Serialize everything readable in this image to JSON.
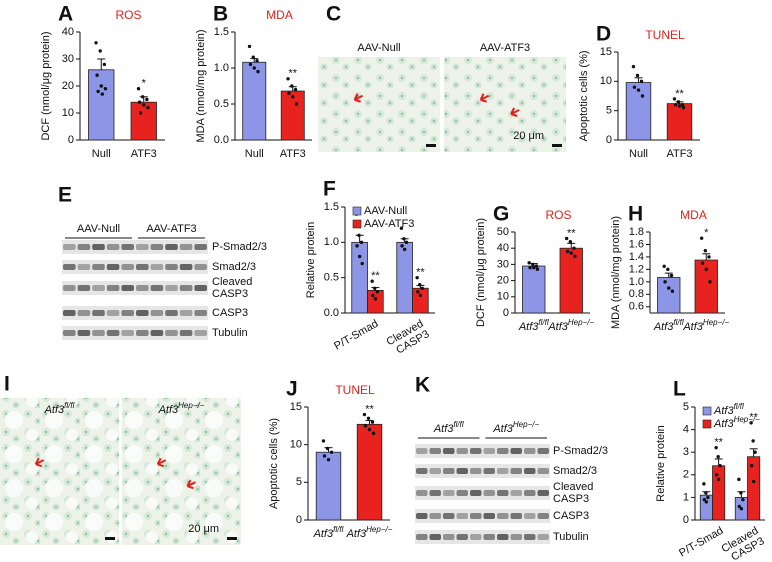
{
  "chart_data": [
    {
      "type": "bar",
      "panel": "A",
      "title": "ROS",
      "ylabel": "DCF (nmol/μg protein)",
      "categories": [
        "Null",
        "ATF3"
      ],
      "values": [
        26,
        14
      ],
      "errors": [
        4,
        2
      ],
      "points": [
        [
          36,
          33,
          28,
          24,
          20,
          19,
          18,
          17
        ],
        [
          19,
          16,
          15,
          14,
          13,
          12,
          10
        ]
      ],
      "sig": [
        null,
        "*"
      ],
      "colors": [
        "#8d95e6",
        "#e8231f"
      ],
      "ylim": [
        0,
        40
      ],
      "yticks": [
        0,
        10,
        20,
        30,
        40
      ]
    },
    {
      "type": "bar",
      "panel": "B",
      "title": "MDA",
      "ylabel": "MDA (nmol/mg protein)",
      "categories": [
        "Null",
        "ATF3"
      ],
      "values": [
        1.08,
        0.68
      ],
      "errors": [
        0.05,
        0.06
      ],
      "points": [
        [
          1.3,
          1.15,
          1.1,
          1.05,
          1.0,
          0.95
        ],
        [
          0.85,
          0.75,
          0.7,
          0.65,
          0.6,
          0.5
        ]
      ],
      "sig": [
        null,
        "**"
      ],
      "colors": [
        "#8d95e6",
        "#e8231f"
      ],
      "ylim": [
        0,
        1.5
      ],
      "yticks": [
        {
          "value": 0,
          "label": "0.0"
        },
        0.5,
        {
          "value": 1,
          "label": "1.0"
        },
        1.5
      ]
    },
    {
      "type": "bar",
      "panel": "D",
      "title": "TUNEL",
      "ylabel": "Apoptotic cells (%)",
      "categories": [
        "Null",
        "ATF3"
      ],
      "values": [
        9.8,
        6.2
      ],
      "errors": [
        0.8,
        0.3
      ],
      "points": [
        [
          12.5,
          11,
          10,
          9,
          8.5,
          7.5
        ],
        [
          7,
          6.5,
          6,
          6,
          5.8,
          5.5
        ]
      ],
      "sig": [
        null,
        "**"
      ],
      "colors": [
        "#8d95e6",
        "#e8231f"
      ],
      "ylim": [
        0,
        15
      ],
      "yticks": [
        0,
        5,
        10,
        15
      ]
    },
    {
      "type": "grouped_bar",
      "panel": "F",
      "ylabel": "Relative protein",
      "categories": [
        "P/T-Smad",
        "Cleaved CASP3"
      ],
      "ylim": [
        0,
        1.5
      ],
      "yticks": [
        {
          "value": 0,
          "label": "0.0"
        },
        0.5,
        {
          "value": 1,
          "label": "1.0"
        },
        1.5
      ],
      "series": [
        {
          "name": "AAV-Null",
          "color": "#8d95e6",
          "values": [
            1.0,
            1.0
          ],
          "errors": [
            0.1,
            0.05
          ],
          "points": [
            [
              1.4,
              1.1,
              1.0,
              0.95,
              0.8,
              0.7
            ],
            [
              1.2,
              1.05,
              1.0,
              0.95,
              0.9
            ]
          ],
          "sig": [
            null,
            null
          ]
        },
        {
          "name": "AAV-ATF3",
          "color": "#e8231f",
          "values": [
            0.32,
            0.35
          ],
          "errors": [
            0.04,
            0.04
          ],
          "points": [
            [
              0.45,
              0.35,
              0.3,
              0.25,
              0.2
            ],
            [
              0.5,
              0.4,
              0.35,
              0.3,
              0.25
            ]
          ],
          "sig": [
            "**",
            "**"
          ]
        }
      ]
    },
    {
      "type": "bar",
      "panel": "G",
      "title": "ROS",
      "ylabel": "DCF (nmol/μg protein)",
      "categories": [
        {
          "text": "Atf3",
          "sup": "fl/fl"
        },
        {
          "text": "Atf3",
          "sup": "Hep−/−"
        }
      ],
      "values": [
        29,
        40
      ],
      "errors": [
        1.5,
        3
      ],
      "points": [
        [
          31,
          30,
          29,
          28,
          28,
          27
        ],
        [
          46,
          44,
          40,
          38,
          37,
          35
        ]
      ],
      "sig": [
        null,
        "**"
      ],
      "colors": [
        "#8d95e6",
        "#e8231f"
      ],
      "ylim": [
        0,
        50
      ],
      "yticks": [
        0,
        10,
        20,
        30,
        40,
        50
      ]
    },
    {
      "type": "bar",
      "panel": "H",
      "title": "MDA",
      "ylabel": "MDA (nmol/mg protein)",
      "categories": [
        {
          "text": "Atf3",
          "sup": "fl/fl"
        },
        {
          "text": "Atf3",
          "sup": "Hep−/−"
        }
      ],
      "values": [
        1.07,
        1.35
      ],
      "errors": [
        0.07,
        0.1
      ],
      "points": [
        [
          1.25,
          1.2,
          1.1,
          1.0,
          0.9,
          0.85
        ],
        [
          1.7,
          1.5,
          1.4,
          1.3,
          1.2,
          1.0
        ]
      ],
      "sig": [
        null,
        "*"
      ],
      "colors": [
        "#8d95e6",
        "#e8231f"
      ],
      "ylim": [
        0.5,
        1.8
      ],
      "yticks": [
        0.6,
        0.8,
        {
          "value": 1,
          "label": "1.0"
        },
        1.2,
        1.4,
        1.6,
        1.8
      ]
    },
    {
      "type": "bar",
      "panel": "J",
      "title": "TUNEL",
      "ylabel": "Apoptotic cells (%)",
      "categories": [
        {
          "text": "Atf3",
          "sup": "fl/fl"
        },
        {
          "text": "Atf3",
          "sup": "Hep−/−"
        }
      ],
      "values": [
        9,
        12.7
      ],
      "errors": [
        0.6,
        0.5
      ],
      "points": [
        [
          10.5,
          9.5,
          9,
          8.5,
          8
        ],
        [
          14,
          13.5,
          13,
          12.5,
          12,
          11.5
        ]
      ],
      "sig": [
        null,
        "**"
      ],
      "colors": [
        "#8d95e6",
        "#e8231f"
      ],
      "ylim": [
        0,
        15
      ],
      "yticks": [
        0,
        5,
        10,
        15
      ]
    },
    {
      "type": "grouped_bar",
      "panel": "L",
      "ylabel": "Relative protein",
      "categories": [
        "P/T-Smad",
        "Cleaved CASP3"
      ],
      "ylim": [
        0,
        5
      ],
      "yticks": [
        0,
        1,
        2,
        3,
        4,
        5
      ],
      "series": [
        {
          "name": {
            "text": "Atf3",
            "sup": "fl/fl"
          },
          "color": "#8d95e6",
          "values": [
            1.1,
            1.0
          ],
          "errors": [
            0.15,
            0.25
          ],
          "points": [
            [
              1.6,
              1.2,
              1.0,
              0.9,
              0.8
            ],
            [
              1.8,
              1.2,
              0.9,
              0.6,
              0.5
            ]
          ],
          "sig": [
            null,
            null
          ]
        },
        {
          "name": {
            "text": "Atf3",
            "sup": "Hep−/−"
          },
          "color": "#e8231f",
          "values": [
            2.4,
            2.8
          ],
          "errors": [
            0.3,
            0.35
          ],
          "points": [
            [
              3.2,
              2.8,
              2.4,
              2.0,
              1.8
            ],
            [
              4.3,
              3.5,
              3.0,
              2.4,
              1.7
            ]
          ],
          "sig": [
            "**",
            "**"
          ]
        }
      ]
    }
  ],
  "figures": [
    {
      "panel": "C",
      "labels": [
        "AAV-Null",
        "AAV-ATF3"
      ],
      "scale": "20 μm"
    },
    {
      "panel": "E",
      "groups": [
        "AAV-Null",
        "AAV-ATF3"
      ],
      "bands": [
        "P-Smad2/3",
        "Smad2/3",
        "Cleaved CASP3",
        "CASP3",
        "Tubulin"
      ]
    },
    {
      "panel": "I",
      "labels": [
        {
          "text": "Atf3",
          "sup": "fl/fl"
        },
        {
          "text": "Atf3",
          "sup": "Hep−/−"
        }
      ],
      "scale": "20 μm"
    },
    {
      "panel": "K",
      "groups": [
        {
          "text": "Atf3",
          "sup": "fl/fl"
        },
        {
          "text": "Atf3",
          "sup": "Hep−/−"
        }
      ],
      "bands": [
        "P-Smad2/3",
        "Smad2/3",
        "Cleaved CASP3",
        "CASP3",
        "Tubulin"
      ]
    }
  ]
}
